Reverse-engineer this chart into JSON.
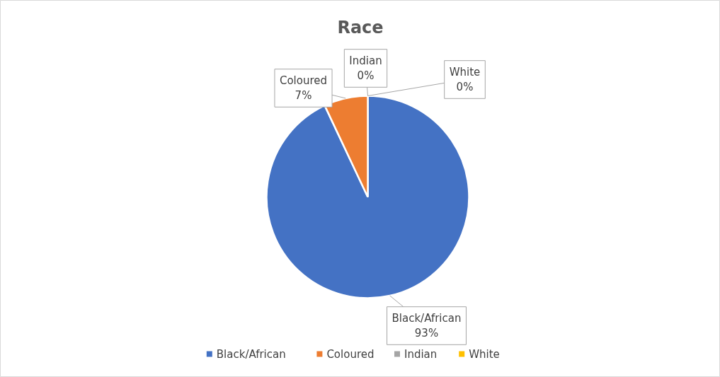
{
  "chart_data": {
    "type": "pie",
    "title": "Race",
    "categories": [
      "Black/African",
      "Coloured",
      "Indian",
      "White"
    ],
    "values": [
      93,
      7,
      0,
      0
    ],
    "value_labels": [
      "93%",
      "7%",
      "0%",
      "0%"
    ],
    "colors": [
      "#4472c4",
      "#ed7d31",
      "#a5a5a5",
      "#ffc000"
    ],
    "legend": "bottom"
  }
}
